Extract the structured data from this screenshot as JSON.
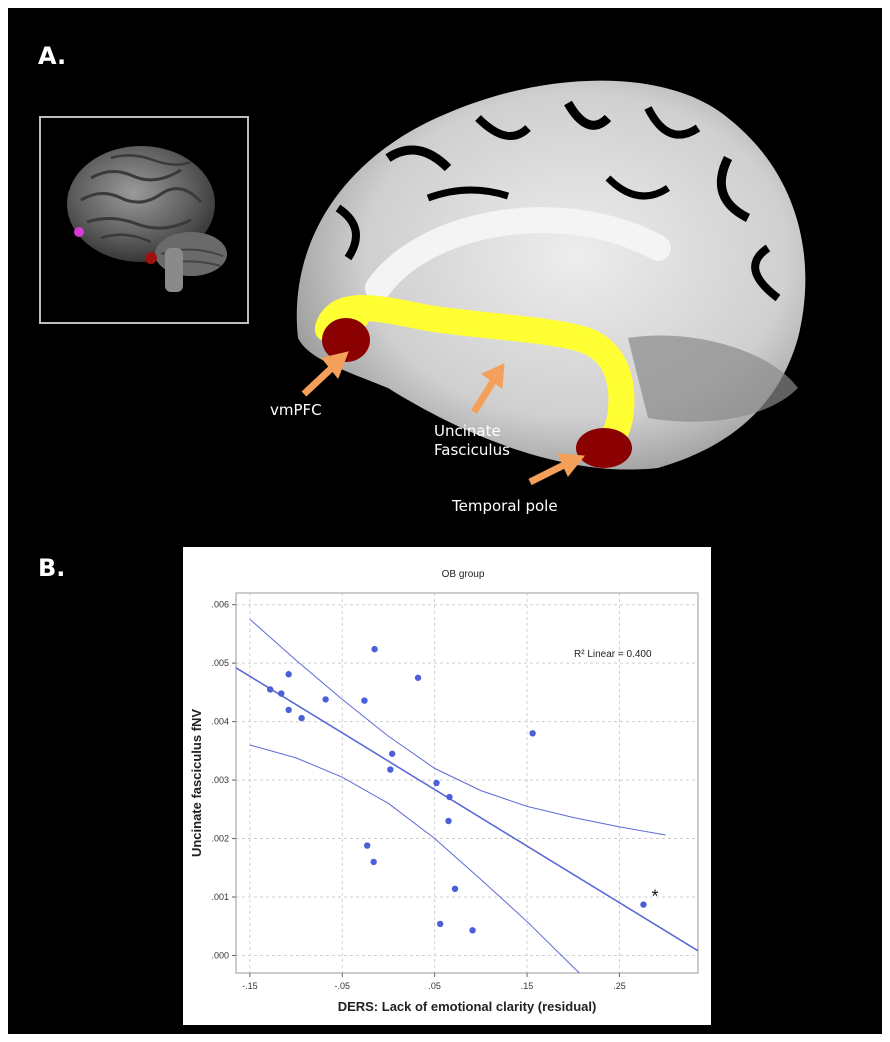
{
  "panel_a": {
    "label": "A.",
    "annotations": {
      "vmpfc": "vmPFC",
      "uncinate": "Uncinate\nFasciculus",
      "temporal_pole": "Temporal pole"
    },
    "colors": {
      "tract": "#ffff33",
      "roi": "#8b0000",
      "arrow": "#f4a05a",
      "inset_roi_frontal": "#d63bd6"
    }
  },
  "panel_b": {
    "label": "B."
  },
  "chart_data": {
    "type": "scatter",
    "title": "OB group",
    "xlabel": "DERS: Lack of emotional clarity (residual)",
    "ylabel": "Uncinate fasciculus fNV",
    "xlim": [
      -0.165,
      0.335
    ],
    "ylim": [
      -0.0003,
      0.0062
    ],
    "x_ticks": [
      -0.15,
      -0.05,
      0.05,
      0.15,
      0.25
    ],
    "x_tick_labels": [
      "-.15",
      "-.05",
      ".05",
      ".15",
      ".25"
    ],
    "y_ticks": [
      0,
      0.001,
      0.002,
      0.003,
      0.004,
      0.005,
      0.006
    ],
    "y_tick_labels": [
      ".000",
      ".001",
      ".002",
      ".003",
      ".004",
      ".005",
      ".006"
    ],
    "grid": true,
    "annotation": "R² Linear = 0.400",
    "outlier_marker": "*",
    "point_color": "#4a5fd8",
    "line_color": "#5c6ad6",
    "points": [
      {
        "x": -0.128,
        "y": 0.00455
      },
      {
        "x": -0.116,
        "y": 0.00448
      },
      {
        "x": -0.108,
        "y": 0.00481
      },
      {
        "x": -0.108,
        "y": 0.0042
      },
      {
        "x": -0.094,
        "y": 0.00406
      },
      {
        "x": -0.068,
        "y": 0.00438
      },
      {
        "x": -0.026,
        "y": 0.00436
      },
      {
        "x": -0.015,
        "y": 0.00524
      },
      {
        "x": 0.004,
        "y": 0.00345
      },
      {
        "x": 0.002,
        "y": 0.00318
      },
      {
        "x": 0.032,
        "y": 0.00475
      },
      {
        "x": -0.023,
        "y": 0.00188
      },
      {
        "x": -0.016,
        "y": 0.0016
      },
      {
        "x": 0.052,
        "y": 0.00295
      },
      {
        "x": 0.066,
        "y": 0.00271
      },
      {
        "x": 0.065,
        "y": 0.0023
      },
      {
        "x": 0.072,
        "y": 0.00114
      },
      {
        "x": 0.056,
        "y": 0.00054
      },
      {
        "x": 0.091,
        "y": 0.00043
      },
      {
        "x": 0.156,
        "y": 0.0038
      },
      {
        "x": 0.276,
        "y": 0.00087
      }
    ],
    "fit_line": {
      "x": [
        -0.165,
        0.335
      ],
      "y": [
        0.00492,
        8e-05
      ]
    },
    "ci_upper": {
      "x": [
        -0.15,
        -0.1,
        -0.05,
        0.0,
        0.05,
        0.1,
        0.15,
        0.2,
        0.25,
        0.3
      ],
      "y": [
        0.00575,
        0.00505,
        0.00438,
        0.00375,
        0.0032,
        0.00282,
        0.00255,
        0.00236,
        0.0022,
        0.00206
      ]
    },
    "ci_lower": {
      "x": [
        -0.15,
        -0.1,
        -0.05,
        0.0,
        0.05,
        0.1,
        0.15,
        0.2,
        0.22
      ],
      "y": [
        0.0036,
        0.00338,
        0.00305,
        0.0026,
        0.002,
        0.0013,
        0.00058,
        -0.0002,
        -0.0005
      ]
    }
  }
}
